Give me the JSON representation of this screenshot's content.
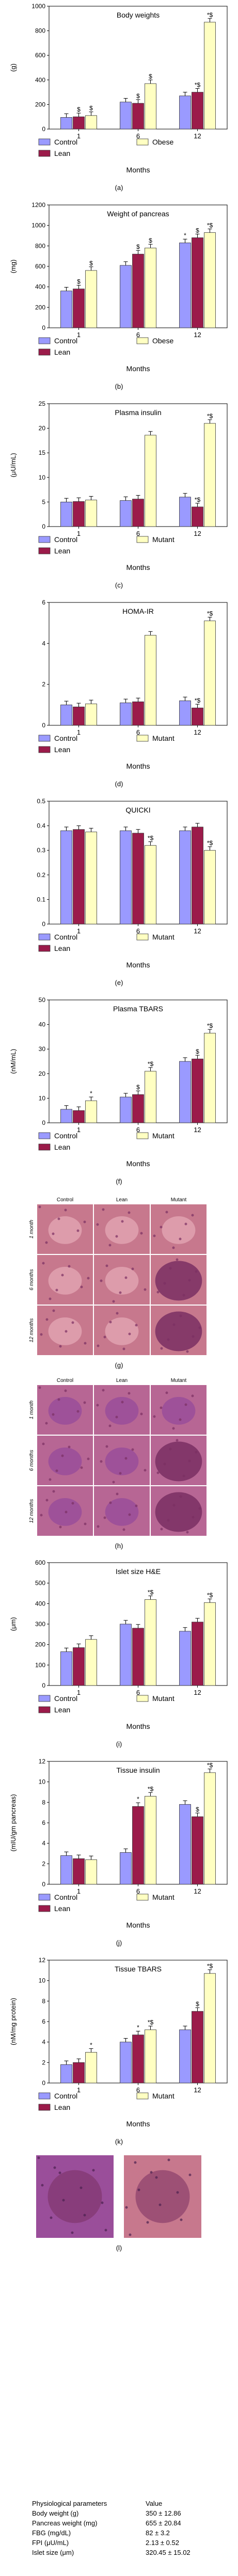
{
  "colors": {
    "control": "#9a9aff",
    "lean": "#9b1b4a",
    "third": "#ffffc2",
    "stain_bg": "#c7788d",
    "stain_cell": "#e0a2b0",
    "stain_dark": "#7a2f63",
    "stain2_bg": "#b76694",
    "stain2_cell": "#9a4e9a"
  },
  "chart_data": [
    {
      "type": "bar",
      "title": "Body weights",
      "caption": "(a)",
      "ylabel": "(g)",
      "xlabel": "Months",
      "categories": [
        "1",
        "6",
        "12"
      ],
      "ylim": [
        0,
        1000
      ],
      "yticks": [
        "0",
        "200",
        "400",
        "600",
        "800",
        "1000"
      ],
      "legend": [
        "Control",
        "Lean",
        "Obese"
      ],
      "legend_position": "bottom",
      "series": [
        {
          "name": "Control",
          "values": [
            95,
            220,
            270
          ]
        },
        {
          "name": "Lean",
          "values": [
            100,
            210,
            300
          ]
        },
        {
          "name": "Obese",
          "values": [
            110,
            370,
            870
          ]
        }
      ],
      "annotations": [
        [
          "",
          "",
          ""
        ],
        [
          "$",
          "$",
          "*$"
        ],
        [
          "$",
          "$",
          "*$"
        ]
      ]
    },
    {
      "type": "bar",
      "title": "Weight of pancreas",
      "caption": "(b)",
      "ylabel": "(mg)",
      "xlabel": "Months",
      "categories": [
        "1",
        "6",
        "12"
      ],
      "ylim": [
        0,
        1200
      ],
      "yticks": [
        "0",
        "200",
        "400",
        "600",
        "800",
        "1000",
        "1200"
      ],
      "legend": [
        "Control",
        "Lean",
        "Obese"
      ],
      "legend_position": "bottom",
      "series": [
        {
          "name": "Control",
          "values": [
            360,
            610,
            830
          ]
        },
        {
          "name": "Lean",
          "values": [
            380,
            720,
            880
          ]
        },
        {
          "name": "Obese",
          "values": [
            560,
            780,
            930
          ]
        }
      ],
      "annotations": [
        [
          "",
          "",
          "*"
        ],
        [
          "$",
          "$",
          "$"
        ],
        [
          "$",
          "$",
          "*$"
        ]
      ]
    },
    {
      "type": "bar",
      "title": "Plasma insulin",
      "caption": "(c)",
      "ylabel": "(μU/mL)",
      "xlabel": "Months",
      "categories": [
        "1",
        "6",
        "12"
      ],
      "ylim": [
        0,
        25
      ],
      "yticks": [
        "0",
        "5",
        "10",
        "15",
        "20",
        "25"
      ],
      "legend": [
        "Control",
        "Lean",
        "Mutant"
      ],
      "legend_position": "bottom",
      "series": [
        {
          "name": "Control",
          "values": [
            5.0,
            5.3,
            6.0
          ]
        },
        {
          "name": "Lean",
          "values": [
            5.1,
            5.6,
            4.0
          ]
        },
        {
          "name": "Mutant",
          "values": [
            5.4,
            18.6,
            21.0
          ]
        }
      ],
      "annotations": [
        [
          "",
          "",
          ""
        ],
        [
          "",
          "",
          "*$"
        ],
        [
          "",
          "",
          "*$"
        ]
      ]
    },
    {
      "type": "bar",
      "title": "HOMA-IR",
      "caption": "(d)",
      "ylabel": "",
      "xlabel": "Months",
      "categories": [
        "1",
        "6",
        "12"
      ],
      "ylim": [
        0,
        6
      ],
      "yticks": [
        "0",
        "2",
        "4",
        "6"
      ],
      "legend": [
        "Control",
        "Lean",
        "Mutant"
      ],
      "legend_position": "bottom",
      "series": [
        {
          "name": "Control",
          "values": [
            1.0,
            1.1,
            1.2
          ]
        },
        {
          "name": "Lean",
          "values": [
            0.9,
            1.15,
            0.85
          ]
        },
        {
          "name": "Mutant",
          "values": [
            1.05,
            4.4,
            5.1
          ]
        }
      ],
      "annotations": [
        [
          "",
          "",
          ""
        ],
        [
          "",
          "",
          "*$"
        ],
        [
          "",
          "",
          "*$"
        ]
      ]
    },
    {
      "type": "bar",
      "title": "QUICKI",
      "caption": "(e)",
      "ylabel": "",
      "xlabel": "Months",
      "categories": [
        "1",
        "6",
        "12"
      ],
      "ylim": [
        0,
        0.5
      ],
      "yticks": [
        "0",
        "0.1",
        "0.2",
        "0.3",
        "0.4",
        "0.5"
      ],
      "legend": [
        "Control",
        "Lean",
        "Mutant"
      ],
      "legend_position": "bottom",
      "series": [
        {
          "name": "Control",
          "values": [
            0.38,
            0.38,
            0.38
          ]
        },
        {
          "name": "Lean",
          "values": [
            0.385,
            0.37,
            0.395
          ]
        },
        {
          "name": "Mutant",
          "values": [
            0.375,
            0.32,
            0.3
          ]
        }
      ],
      "annotations": [
        [
          "",
          "",
          ""
        ],
        [
          "",
          "",
          ""
        ],
        [
          "",
          "*$",
          "*$"
        ]
      ]
    },
    {
      "type": "bar",
      "title": "Plasma TBARS",
      "caption": "(f)",
      "ylabel": "(nM/mL)",
      "xlabel": "Months",
      "categories": [
        "1",
        "6",
        "12"
      ],
      "ylim": [
        0,
        50
      ],
      "yticks": [
        "0",
        "10",
        "20",
        "30",
        "40",
        "50"
      ],
      "legend": [
        "Control",
        "Lean",
        "Mutant"
      ],
      "legend_position": "bottom",
      "series": [
        {
          "name": "Control",
          "values": [
            5.5,
            10.5,
            25.0
          ]
        },
        {
          "name": "Lean",
          "values": [
            5.0,
            11.5,
            26.0
          ]
        },
        {
          "name": "Mutant",
          "values": [
            9.0,
            21.0,
            36.5
          ]
        }
      ],
      "annotations": [
        [
          "",
          "",
          ""
        ],
        [
          "",
          "$",
          "$"
        ],
        [
          "*",
          "*$",
          "*$"
        ]
      ]
    },
    {
      "type": "bar",
      "title": "Islet size H&E",
      "caption": "(i)",
      "ylabel": "(μm)",
      "xlabel": "Months",
      "categories": [
        "1",
        "6",
        "12"
      ],
      "ylim": [
        0,
        600
      ],
      "yticks": [
        "0",
        "100",
        "200",
        "300",
        "400",
        "500",
        "600"
      ],
      "legend": [
        "Control",
        "Lean",
        "Mutant"
      ],
      "legend_position": "bottom",
      "series": [
        {
          "name": "Control",
          "values": [
            165,
            300,
            265
          ]
        },
        {
          "name": "Lean",
          "values": [
            185,
            280,
            310
          ]
        },
        {
          "name": "Mutant",
          "values": [
            225,
            420,
            405
          ]
        }
      ],
      "annotations": [
        [
          "",
          "",
          ""
        ],
        [
          "",
          "",
          ""
        ],
        [
          "",
          "*$",
          "*$"
        ]
      ]
    },
    {
      "type": "bar",
      "title": "Tissue insulin",
      "caption": "(j)",
      "ylabel": "(mIU/gm pancreas)",
      "xlabel": "Months",
      "categories": [
        "1",
        "6",
        "12"
      ],
      "ylim": [
        0,
        12
      ],
      "yticks": [
        "0",
        "2",
        "4",
        "6",
        "8",
        "10",
        "12"
      ],
      "legend": [
        "Control",
        "Lean",
        "Mutant"
      ],
      "legend_position": "bottom",
      "series": [
        {
          "name": "Control",
          "values": [
            2.8,
            3.1,
            7.8
          ]
        },
        {
          "name": "Lean",
          "values": [
            2.5,
            7.6,
            6.6
          ]
        },
        {
          "name": "Mutant",
          "values": [
            2.4,
            8.6,
            10.9
          ]
        }
      ],
      "annotations": [
        [
          "",
          "",
          ""
        ],
        [
          "",
          "*",
          "$"
        ],
        [
          "",
          "*$",
          "*$"
        ]
      ]
    },
    {
      "type": "bar",
      "title": "Tissue TBARS",
      "caption": "(k)",
      "ylabel": "(nM/mg protein)",
      "xlabel": "Months",
      "categories": [
        "1",
        "6",
        "12"
      ],
      "ylim": [
        0,
        12
      ],
      "yticks": [
        "0",
        "2",
        "4",
        "6",
        "8",
        "10",
        "12"
      ],
      "legend": [
        "Control",
        "Lean",
        "Mutant"
      ],
      "legend_position": "bottom",
      "series": [
        {
          "name": "Control",
          "values": [
            1.8,
            4.0,
            5.2
          ]
        },
        {
          "name": "Lean",
          "values": [
            2.0,
            4.7,
            7.0
          ]
        },
        {
          "name": "Mutant",
          "values": [
            3.0,
            5.2,
            10.7
          ]
        }
      ],
      "annotations": [
        [
          "",
          "",
          ""
        ],
        [
          "",
          "*",
          "$"
        ],
        [
          "*",
          "*$",
          "*$"
        ]
      ]
    }
  ],
  "micrographs": {
    "g": {
      "caption": "(g)",
      "columns": [
        "Control",
        "Lean",
        "Mutant"
      ],
      "rows": [
        "1 month",
        "6 months",
        "12 months"
      ]
    },
    "h": {
      "caption": "(h)",
      "columns": [
        "Control",
        "Lean",
        "Mutant"
      ],
      "rows": [
        "1 month",
        "6 months",
        "12 months"
      ]
    },
    "l": {
      "caption": "(l)"
    }
  },
  "table": {
    "header": [
      "Physiological parameters",
      "Value"
    ],
    "rows": [
      [
        "Body weight (g)",
        "350 ± 12.86"
      ],
      [
        "Pancreas weight (mg)",
        "655 ± 20.84"
      ],
      [
        "FBG (mg/dL)",
        "82 ± 3.2"
      ],
      [
        "FPI (μU/mL)",
        "2.13 ± 0.52"
      ],
      [
        "Islet size (μm)",
        "320.45 ± 15.02"
      ]
    ]
  }
}
